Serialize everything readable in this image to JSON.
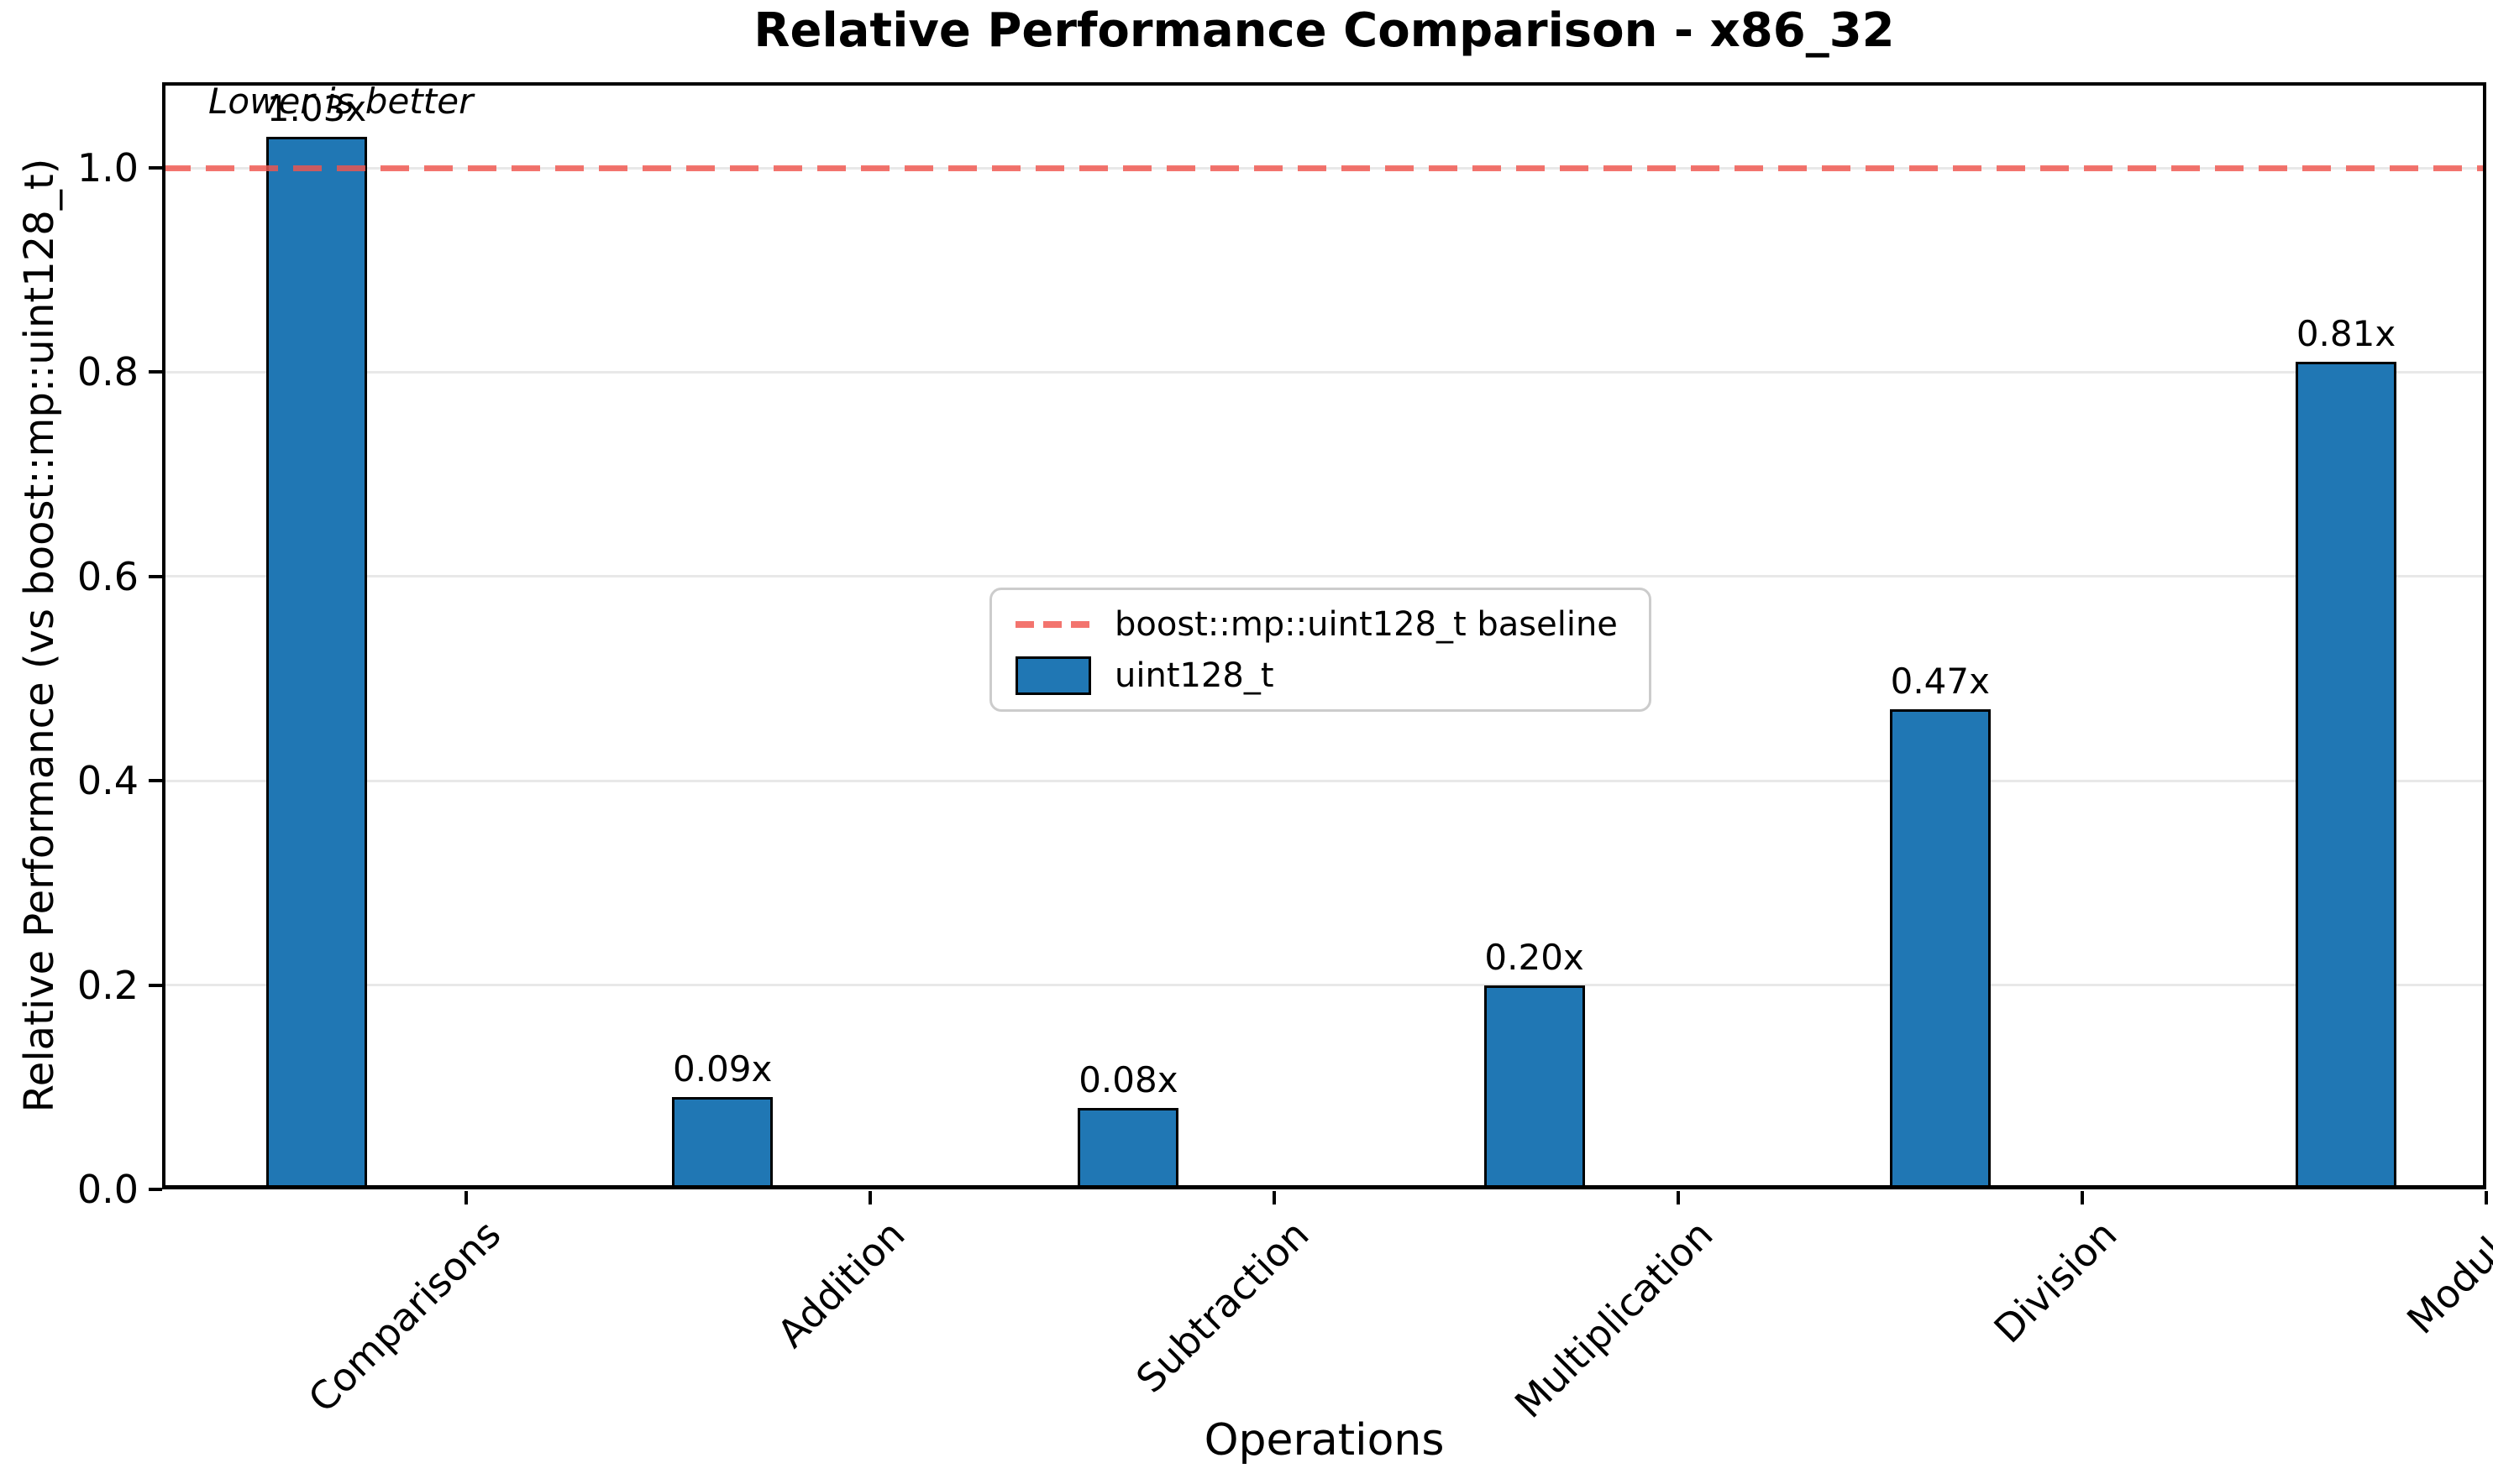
{
  "chart_data": {
    "type": "bar",
    "title": "Relative Performance Comparison - x86_32",
    "xlabel": "Operations",
    "ylabel": "Relative Performance (vs boost::mp::uint128_t)",
    "annotation": "Lower is better",
    "categories": [
      "Comparisons",
      "Addition",
      "Subtraction",
      "Multiplication",
      "Division",
      "Modulo"
    ],
    "series": [
      {
        "name": "uint128_t",
        "values": [
          1.03,
          0.09,
          0.08,
          0.2,
          0.47,
          0.81
        ]
      }
    ],
    "value_labels": [
      "1.03x",
      "0.09x",
      "0.08x",
      "0.20x",
      "0.47x",
      "0.81x"
    ],
    "baseline": {
      "value": 1.0,
      "label": "boost::mp::uint128_t baseline"
    },
    "yticks": [
      0.0,
      0.2,
      0.4,
      0.6,
      0.8,
      1.0
    ],
    "ytick_labels": [
      "0.0",
      "0.2",
      "0.4",
      "0.6",
      "0.8",
      "1.0"
    ],
    "ylim": [
      0,
      1.084
    ],
    "grid": "horizontal",
    "legend_position": "center",
    "colors": {
      "bar_fill": "#2077b4",
      "bar_edge": "#000000",
      "baseline": "rgba(240,85,78,0.82)",
      "grid": "#e8e8e8",
      "legend_border": "#cccccc"
    }
  }
}
